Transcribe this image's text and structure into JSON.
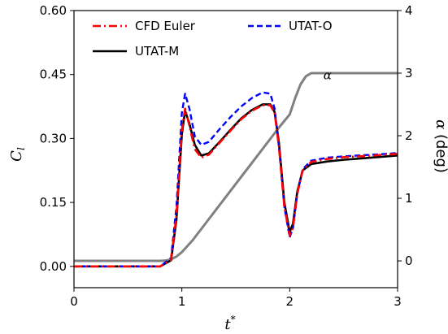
{
  "chart_data": {
    "type": "line",
    "xlabel_main": "t",
    "xlabel_sup": "*",
    "ylabel_left_main": "C",
    "ylabel_left_sub": "l",
    "ylabel_right_symbol": "α",
    "ylabel_right_unit": " (deg)",
    "xlim": [
      0,
      3
    ],
    "ylim_left": [
      -0.05,
      0.6
    ],
    "ylim_right": [
      -0.428,
      4
    ],
    "xticks": [
      0,
      1,
      2,
      3
    ],
    "xtick_labels": [
      "0",
      "1",
      "2",
      "3"
    ],
    "yticks_left": [
      0.0,
      0.15,
      0.3,
      0.45,
      0.6
    ],
    "ytick_labels_left": [
      "0.00",
      "0.15",
      "0.30",
      "0.45",
      "0.60"
    ],
    "yticks_right": [
      0,
      1,
      2,
      3,
      4
    ],
    "ytick_labels_right": [
      "0",
      "1",
      "2",
      "3",
      "4"
    ],
    "grid": false,
    "legend_position": "top",
    "annotation": {
      "text": "α",
      "x": 2.35,
      "y_right": 2.9
    },
    "series": [
      {
        "name": "CFD Euler",
        "axis": "left",
        "color": "#ff0000",
        "style": "dashdot",
        "width": 2.6,
        "x": [
          0,
          0.8,
          0.9,
          0.95,
          1.0,
          1.03,
          1.07,
          1.12,
          1.18,
          1.25,
          1.35,
          1.45,
          1.55,
          1.65,
          1.75,
          1.82,
          1.86,
          1.9,
          1.95,
          2.0,
          2.03,
          2.07,
          2.12,
          2.2,
          2.35,
          2.5,
          2.7,
          2.9,
          3.0
        ],
        "y": [
          0.0,
          0.0,
          0.015,
          0.12,
          0.32,
          0.37,
          0.33,
          0.275,
          0.255,
          0.262,
          0.29,
          0.318,
          0.345,
          0.365,
          0.378,
          0.378,
          0.36,
          0.28,
          0.14,
          0.072,
          0.09,
          0.17,
          0.225,
          0.245,
          0.252,
          0.256,
          0.259,
          0.262,
          0.264
        ]
      },
      {
        "name": "UTAT-O",
        "axis": "left",
        "color": "#0000ff",
        "style": "dashed",
        "width": 2.4,
        "x": [
          0,
          0.8,
          0.9,
          0.95,
          1.0,
          1.03,
          1.07,
          1.12,
          1.18,
          1.25,
          1.35,
          1.45,
          1.55,
          1.65,
          1.75,
          1.82,
          1.86,
          1.9,
          1.95,
          2.0,
          2.03,
          2.07,
          2.12,
          2.2,
          2.35,
          2.5,
          2.7,
          2.9,
          3.0
        ],
        "y": [
          0.0,
          0.0,
          0.02,
          0.14,
          0.36,
          0.405,
          0.37,
          0.305,
          0.285,
          0.292,
          0.322,
          0.35,
          0.375,
          0.395,
          0.408,
          0.405,
          0.37,
          0.28,
          0.14,
          0.068,
          0.09,
          0.17,
          0.228,
          0.248,
          0.255,
          0.258,
          0.261,
          0.264,
          0.266
        ]
      },
      {
        "name": "UTAT-M",
        "axis": "left",
        "color": "#000000",
        "style": "solid",
        "width": 2.6,
        "x": [
          0,
          0.8,
          0.9,
          0.95,
          1.0,
          1.03,
          1.07,
          1.12,
          1.18,
          1.25,
          1.35,
          1.45,
          1.55,
          1.65,
          1.75,
          1.82,
          1.86,
          1.9,
          1.95,
          2.0,
          2.03,
          2.07,
          2.12,
          2.2,
          2.35,
          2.5,
          2.7,
          2.9,
          3.0
        ],
        "y": [
          0.0,
          0.0,
          0.014,
          0.11,
          0.31,
          0.365,
          0.335,
          0.285,
          0.26,
          0.265,
          0.292,
          0.32,
          0.347,
          0.367,
          0.38,
          0.38,
          0.362,
          0.29,
          0.15,
          0.08,
          0.1,
          0.175,
          0.225,
          0.24,
          0.246,
          0.25,
          0.254,
          0.258,
          0.26
        ]
      },
      {
        "name": "α",
        "axis": "right",
        "color": "#808080",
        "style": "solid",
        "width": 3,
        "x": [
          0,
          0.8,
          0.85,
          0.9,
          0.95,
          1.0,
          1.1,
          1.3,
          1.5,
          1.7,
          1.9,
          2.0,
          2.05,
          2.1,
          2.15,
          2.2,
          2.3,
          3.0
        ],
        "y": [
          0.0,
          0.0,
          0.005,
          0.025,
          0.07,
          0.14,
          0.33,
          0.78,
          1.23,
          1.68,
          2.13,
          2.34,
          2.6,
          2.82,
          2.95,
          3.0,
          3.0,
          3.0
        ]
      }
    ],
    "legend": [
      {
        "label": "CFD Euler",
        "color": "#ff0000",
        "style": "dashdot"
      },
      {
        "label": "UTAT-O",
        "color": "#0000ff",
        "style": "dashed"
      },
      {
        "label": "UTAT-M",
        "color": "#000000",
        "style": "solid"
      }
    ]
  }
}
